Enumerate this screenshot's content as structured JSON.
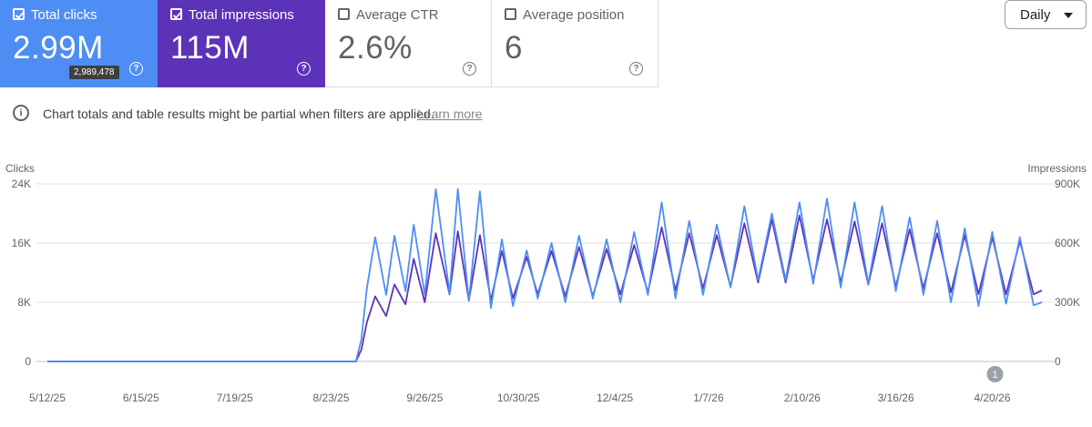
{
  "metrics": {
    "clicks": {
      "label": "Total clicks",
      "value": "2.99M",
      "checked": true,
      "tooltip": "2,989,478",
      "color": "#4e8ef4"
    },
    "impressions": {
      "label": "Total impressions",
      "value": "115M",
      "checked": true,
      "color": "#5c33b8"
    },
    "ctr": {
      "label": "Average CTR",
      "value": "2.6%",
      "checked": false
    },
    "position": {
      "label": "Average position",
      "value": "6",
      "checked": false
    }
  },
  "help_glyph": "?",
  "granularity": {
    "selected": "Daily"
  },
  "notice": {
    "icon": "info-icon",
    "text": "Chart totals and table results might be partial when filters are applied.",
    "link": "Learn more"
  },
  "chart_data": {
    "type": "line",
    "left_axis": {
      "label": "Clicks",
      "ticks": [
        "0",
        "8K",
        "16K",
        "24K"
      ],
      "ylim": [
        0,
        24000
      ]
    },
    "right_axis": {
      "label": "Impressions",
      "ticks": [
        "0",
        "300K",
        "600K",
        "900K"
      ],
      "ylim": [
        0,
        900000
      ]
    },
    "x_ticks": [
      "5/12/25",
      "6/15/25",
      "7/19/25",
      "8/23/25",
      "9/26/25",
      "10/30/25",
      "12/4/25",
      "1/7/26",
      "2/10/26",
      "3/16/26",
      "4/20/26"
    ],
    "annotation": {
      "label": "1",
      "date": "4/21/26"
    },
    "series": [
      {
        "name": "Clicks",
        "axis": "left",
        "color": "#4e8ef4",
        "x": [
          "5/12/25",
          "9/1/25",
          "9/3/25",
          "9/5/25",
          "9/8/25",
          "9/12/25",
          "9/15/25",
          "9/19/25",
          "9/22/25",
          "9/26/25",
          "9/30/25",
          "10/5/25",
          "10/8/25",
          "10/12/25",
          "10/16/25",
          "10/20/25",
          "10/24/25",
          "10/28/25",
          "11/2/25",
          "11/6/25",
          "11/11/25",
          "11/16/25",
          "11/21/25",
          "11/26/25",
          "12/1/25",
          "12/6/25",
          "12/11/25",
          "12/16/25",
          "12/21/25",
          "12/26/25",
          "12/31/25",
          "1/5/26",
          "1/10/26",
          "1/15/26",
          "1/20/26",
          "1/25/26",
          "1/30/26",
          "2/4/26",
          "2/9/26",
          "2/14/26",
          "2/19/26",
          "2/24/26",
          "3/1/26",
          "3/6/26",
          "3/11/26",
          "3/16/26",
          "3/21/26",
          "3/26/26",
          "3/31/26",
          "4/5/26",
          "4/10/26",
          "4/15/26",
          "4/20/26",
          "4/25/26",
          "4/30/26",
          "5/5/26",
          "5/8/26"
        ],
        "y": [
          0,
          0,
          3000,
          10000,
          16800,
          9000,
          17000,
          9500,
          18500,
          9000,
          23300,
          9200,
          23300,
          8200,
          23000,
          7200,
          16500,
          7500,
          15000,
          8500,
          16000,
          8000,
          17000,
          8500,
          16500,
          8000,
          17500,
          9000,
          21500,
          8500,
          19000,
          9000,
          18500,
          10000,
          21000,
          11000,
          20000,
          11000,
          21500,
          10500,
          22000,
          10000,
          21500,
          10500,
          21000,
          9500,
          19500,
          9000,
          19000,
          8000,
          18000,
          7500,
          17500,
          7800,
          16800,
          7600,
          8000
        ]
      },
      {
        "name": "Impressions",
        "axis": "right",
        "color": "#5c33b8",
        "x": [
          "5/12/25",
          "9/1/25",
          "9/3/25",
          "9/5/25",
          "9/8/25",
          "9/12/25",
          "9/15/25",
          "9/19/25",
          "9/22/25",
          "9/26/25",
          "9/30/25",
          "10/5/25",
          "10/8/25",
          "10/12/25",
          "10/16/25",
          "10/20/25",
          "10/24/25",
          "10/28/25",
          "11/2/25",
          "11/6/25",
          "11/11/25",
          "11/16/25",
          "11/21/25",
          "11/26/25",
          "12/1/25",
          "12/6/25",
          "12/11/25",
          "12/16/25",
          "12/21/25",
          "12/26/25",
          "12/31/25",
          "1/5/26",
          "1/10/26",
          "1/15/26",
          "1/20/26",
          "1/25/26",
          "1/30/26",
          "2/4/26",
          "2/9/26",
          "2/14/26",
          "2/19/26",
          "2/24/26",
          "3/1/26",
          "3/6/26",
          "3/11/26",
          "3/16/26",
          "3/21/26",
          "3/26/26",
          "3/31/26",
          "4/5/26",
          "4/10/26",
          "4/15/26",
          "4/20/26",
          "4/25/26",
          "4/30/26",
          "5/5/26",
          "5/8/26"
        ],
        "y": [
          0,
          0,
          60000,
          200000,
          330000,
          230000,
          390000,
          290000,
          520000,
          300000,
          650000,
          340000,
          660000,
          310000,
          640000,
          310000,
          560000,
          320000,
          530000,
          340000,
          560000,
          330000,
          580000,
          330000,
          570000,
          340000,
          590000,
          350000,
          680000,
          360000,
          650000,
          370000,
          640000,
          380000,
          700000,
          400000,
          720000,
          400000,
          740000,
          410000,
          720000,
          400000,
          710000,
          390000,
          700000,
          380000,
          670000,
          370000,
          650000,
          350000,
          640000,
          340000,
          630000,
          340000,
          610000,
          340000,
          360000
        ]
      }
    ]
  }
}
